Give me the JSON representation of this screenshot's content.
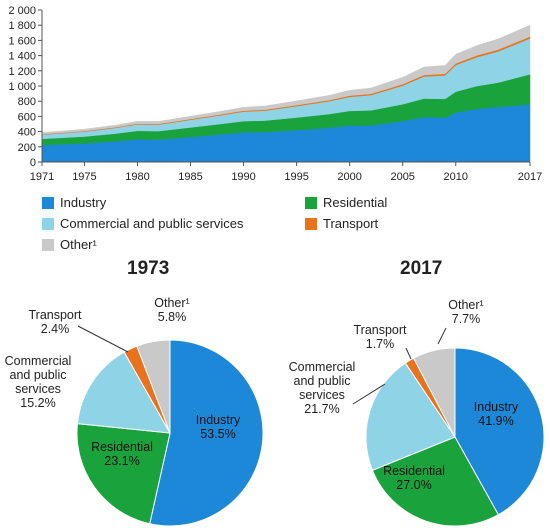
{
  "colors": {
    "industry": "#1e88d8",
    "residential": "#1aa33c",
    "commercial": "#8fd3e6",
    "transport": "#e8731c",
    "other": "#c9c9c9"
  },
  "chart_data": [
    {
      "type": "area",
      "stacked": true,
      "ylim": [
        0,
        2000
      ],
      "xlim": [
        1971,
        2017
      ],
      "y_ticks": [
        "0",
        "200",
        "400",
        "600",
        "800",
        "1 000",
        "1 200",
        "1 400",
        "1 600",
        "1 800",
        "2 000"
      ],
      "x_ticks": [
        "1971",
        "1975",
        "1980",
        "1985",
        "1990",
        "1995",
        "2000",
        "2005",
        "2010",
        "2017"
      ],
      "x": [
        1971,
        1973,
        1975,
        1978,
        1980,
        1982,
        1985,
        1988,
        1990,
        1992,
        1995,
        1998,
        2000,
        2002,
        2005,
        2007,
        2009,
        2010,
        2012,
        2014,
        2017
      ],
      "series": [
        {
          "name": "Industry",
          "values": [
            225,
            235,
            245,
            275,
            300,
            295,
            330,
            365,
            390,
            395,
            420,
            450,
            480,
            480,
            540,
            590,
            585,
            650,
            700,
            725,
            760
          ]
        },
        {
          "name": "Residential",
          "values": [
            80,
            85,
            90,
            100,
            110,
            112,
            125,
            138,
            148,
            150,
            165,
            180,
            192,
            200,
            220,
            245,
            245,
            275,
            300,
            320,
            395
          ]
        },
        {
          "name": "Commercial and public services",
          "values": [
            55,
            60,
            65,
            75,
            85,
            85,
            100,
            115,
            125,
            130,
            150,
            168,
            185,
            200,
            245,
            290,
            310,
            350,
            380,
            410,
            470
          ]
        },
        {
          "name": "Transport",
          "values": [
            7,
            7,
            8,
            9,
            10,
            10,
            11,
            12,
            13,
            13,
            14,
            15,
            16,
            17,
            19,
            20,
            21,
            22,
            23,
            24,
            25
          ]
        },
        {
          "name": "Other¹",
          "values": [
            20,
            22,
            24,
            27,
            30,
            32,
            36,
            40,
            45,
            48,
            55,
            62,
            70,
            76,
            90,
            105,
            110,
            120,
            130,
            140,
            150
          ]
        }
      ]
    },
    {
      "type": "pie",
      "title": "1973",
      "slices": [
        {
          "name": "Industry",
          "value": 53.5,
          "label": "Industry",
          "pct": "53.5%"
        },
        {
          "name": "Residential",
          "value": 23.1,
          "label": "Residential",
          "pct": "23.1%"
        },
        {
          "name": "Commercial",
          "value": 15.2,
          "label": "Commercial\nand public\nservices",
          "pct": "15.2%"
        },
        {
          "name": "Transport",
          "value": 2.4,
          "label": "Transport",
          "pct": "2.4%"
        },
        {
          "name": "Other",
          "value": 5.8,
          "label": "Other¹",
          "pct": "5.8%"
        }
      ]
    },
    {
      "type": "pie",
      "title": "2017",
      "slices": [
        {
          "name": "Industry",
          "value": 41.9,
          "label": "Industry",
          "pct": "41.9%"
        },
        {
          "name": "Residential",
          "value": 27.0,
          "label": "Residential",
          "pct": "27.0%"
        },
        {
          "name": "Commercial",
          "value": 21.7,
          "label": "Commercial\nand public\nservices",
          "pct": "21.7%"
        },
        {
          "name": "Transport",
          "value": 1.7,
          "label": "Transport",
          "pct": "1.7%"
        },
        {
          "name": "Other",
          "value": 7.7,
          "label": "Other¹",
          "pct": "7.7%"
        }
      ]
    }
  ],
  "legend": [
    {
      "label": "Industry",
      "color": "#1e88d8"
    },
    {
      "label": "Residential",
      "color": "#1aa33c"
    },
    {
      "label": "Commercial and public services",
      "color": "#8fd3e6"
    },
    {
      "label": "Transport",
      "color": "#e8731c"
    },
    {
      "label": "Other¹",
      "color": "#c9c9c9"
    }
  ]
}
